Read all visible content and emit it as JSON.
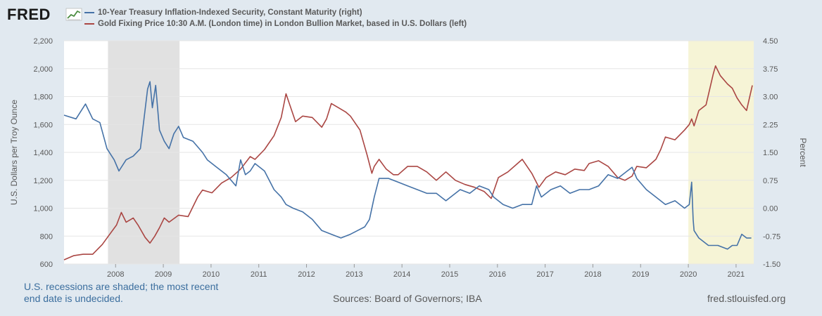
{
  "brand": {
    "logo_text": "FRED",
    "logo_icon": "trend-line-icon"
  },
  "legend": [
    {
      "label": "10-Year Treasury Inflation-Indexed Security, Constant Maturity (right)",
      "color": "#4572a7"
    },
    {
      "label": "Gold Fixing Price 10:30 A.M. (London time) in London Bullion Market, based in U.S. Dollars (left)",
      "color": "#aa4643"
    }
  ],
  "footer": {
    "recession_note_line1": "U.S. recessions are shaded; the most recent",
    "recession_note_line2": "end date is undecided.",
    "sources": "Sources: Board of Governors; IBA",
    "site": "fred.stlouisfed.org"
  },
  "chart_data": {
    "type": "line",
    "title": "",
    "xlabel": "",
    "ylabel_left": "U.S. Dollars per Troy Ounce",
    "ylabel_right": "Percent",
    "xlim": [
      2007.0,
      2021.45
    ],
    "ylim_left": [
      600,
      2200
    ],
    "ylim_right": [
      -1.5,
      4.5
    ],
    "yticks_left": [
      "600",
      "800",
      "1,000",
      "1,200",
      "1,400",
      "1,600",
      "1,800",
      "2,000",
      "2,200"
    ],
    "yticks_right": [
      "-1.50",
      "-0.75",
      "0.00",
      "0.75",
      "1.50",
      "2.25",
      "3.00",
      "3.75",
      "4.50"
    ],
    "xticks": [
      "2008",
      "2009",
      "2010",
      "2011",
      "2012",
      "2013",
      "2014",
      "2015",
      "2016",
      "2017",
      "2018",
      "2019",
      "2020",
      "2021"
    ],
    "shaded_regions": [
      {
        "label": "recession",
        "start": 2007.92,
        "end": 2009.42,
        "color": "#e1e1e1"
      },
      {
        "label": "recession",
        "start": 2020.08,
        "end": 2021.45,
        "color": "#f6f4d6"
      }
    ],
    "series": [
      {
        "name": "10-Year Treasury Inflation-Indexed Security, Constant Maturity (right)",
        "axis": "right",
        "color": "#4572a7",
        "x": [
          2007.0,
          2007.25,
          2007.45,
          2007.6,
          2007.75,
          2007.9,
          2008.05,
          2008.15,
          2008.3,
          2008.45,
          2008.6,
          2008.75,
          2008.8,
          2008.85,
          2008.92,
          2009.0,
          2009.1,
          2009.2,
          2009.3,
          2009.4,
          2009.5,
          2009.7,
          2009.9,
          2010.0,
          2010.2,
          2010.4,
          2010.6,
          2010.7,
          2010.8,
          2010.9,
          2011.0,
          2011.2,
          2011.4,
          2011.55,
          2011.65,
          2011.8,
          2012.0,
          2012.2,
          2012.4,
          2012.6,
          2012.8,
          2013.0,
          2013.15,
          2013.3,
          2013.4,
          2013.5,
          2013.6,
          2013.8,
          2014.0,
          2014.2,
          2014.4,
          2014.6,
          2014.8,
          2015.0,
          2015.1,
          2015.3,
          2015.5,
          2015.7,
          2015.9,
          2016.0,
          2016.2,
          2016.4,
          2016.6,
          2016.8,
          2016.9,
          2017.0,
          2017.2,
          2017.4,
          2017.6,
          2017.8,
          2018.0,
          2018.2,
          2018.4,
          2018.6,
          2018.8,
          2018.9,
          2019.0,
          2019.2,
          2019.4,
          2019.6,
          2019.8,
          2020.0,
          2020.1,
          2020.15,
          2020.18,
          2020.2,
          2020.3,
          2020.5,
          2020.7,
          2020.9,
          2021.0,
          2021.1,
          2021.2,
          2021.3,
          2021.4
        ],
        "values": [
          2.5,
          2.4,
          2.8,
          2.4,
          2.3,
          1.6,
          1.3,
          1.0,
          1.3,
          1.4,
          1.6,
          3.2,
          3.4,
          2.7,
          3.3,
          2.1,
          1.8,
          1.6,
          2.0,
          2.2,
          1.9,
          1.8,
          1.5,
          1.3,
          1.1,
          0.9,
          0.6,
          1.3,
          0.9,
          1.0,
          1.2,
          1.0,
          0.5,
          0.3,
          0.1,
          0.0,
          -0.1,
          -0.3,
          -0.6,
          -0.7,
          -0.8,
          -0.7,
          -0.6,
          -0.5,
          -0.3,
          0.3,
          0.8,
          0.8,
          0.7,
          0.6,
          0.5,
          0.4,
          0.4,
          0.2,
          0.3,
          0.5,
          0.4,
          0.6,
          0.5,
          0.3,
          0.1,
          0.0,
          0.1,
          0.1,
          0.6,
          0.3,
          0.5,
          0.6,
          0.4,
          0.5,
          0.5,
          0.6,
          0.9,
          0.8,
          1.0,
          1.1,
          0.8,
          0.5,
          0.3,
          0.1,
          0.2,
          0.0,
          0.1,
          0.7,
          -0.3,
          -0.6,
          -0.8,
          -1.0,
          -1.0,
          -1.1,
          -1.0,
          -1.0,
          -0.7,
          -0.8,
          -0.8
        ]
      },
      {
        "name": "Gold Fixing Price 10:30 A.M. (London time) in London Bullion Market, based in U.S. Dollars (left)",
        "axis": "left",
        "color": "#aa4643",
        "x": [
          2007.0,
          2007.2,
          2007.4,
          2007.6,
          2007.8,
          2007.95,
          2008.1,
          2008.2,
          2008.3,
          2008.45,
          2008.55,
          2008.7,
          2008.8,
          2008.9,
          2009.0,
          2009.1,
          2009.2,
          2009.4,
          2009.6,
          2009.8,
          2009.9,
          2010.0,
          2010.1,
          2010.3,
          2010.5,
          2010.7,
          2010.9,
          2011.0,
          2011.2,
          2011.4,
          2011.55,
          2011.65,
          2011.72,
          2011.85,
          2012.0,
          2012.2,
          2012.4,
          2012.5,
          2012.6,
          2012.75,
          2012.9,
          2013.0,
          2013.2,
          2013.35,
          2013.45,
          2013.5,
          2013.6,
          2013.75,
          2013.9,
          2014.0,
          2014.2,
          2014.4,
          2014.6,
          2014.8,
          2015.0,
          2015.2,
          2015.4,
          2015.6,
          2015.8,
          2015.95,
          2016.1,
          2016.3,
          2016.5,
          2016.6,
          2016.8,
          2016.95,
          2017.1,
          2017.3,
          2017.5,
          2017.7,
          2017.9,
          2018.0,
          2018.2,
          2018.4,
          2018.6,
          2018.75,
          2018.9,
          2019.0,
          2019.2,
          2019.4,
          2019.5,
          2019.6,
          2019.8,
          2020.0,
          2020.1,
          2020.15,
          2020.2,
          2020.3,
          2020.45,
          2020.6,
          2020.65,
          2020.75,
          2020.9,
          2021.0,
          2021.1,
          2021.2,
          2021.3,
          2021.42
        ],
        "values": [
          630,
          660,
          670,
          670,
          740,
          810,
          880,
          970,
          900,
          930,
          880,
          790,
          750,
          800,
          860,
          930,
          900,
          950,
          940,
          1080,
          1130,
          1120,
          1110,
          1180,
          1220,
          1280,
          1370,
          1350,
          1420,
          1520,
          1650,
          1820,
          1750,
          1620,
          1660,
          1650,
          1580,
          1640,
          1750,
          1720,
          1690,
          1660,
          1560,
          1380,
          1250,
          1300,
          1350,
          1280,
          1240,
          1240,
          1300,
          1300,
          1260,
          1200,
          1260,
          1200,
          1170,
          1150,
          1120,
          1070,
          1220,
          1260,
          1320,
          1350,
          1250,
          1150,
          1220,
          1260,
          1240,
          1280,
          1270,
          1320,
          1340,
          1300,
          1220,
          1200,
          1230,
          1300,
          1290,
          1350,
          1420,
          1510,
          1490,
          1560,
          1600,
          1640,
          1590,
          1700,
          1740,
          1960,
          2020,
          1950,
          1890,
          1860,
          1790,
          1740,
          1700,
          1880
        ]
      }
    ]
  }
}
